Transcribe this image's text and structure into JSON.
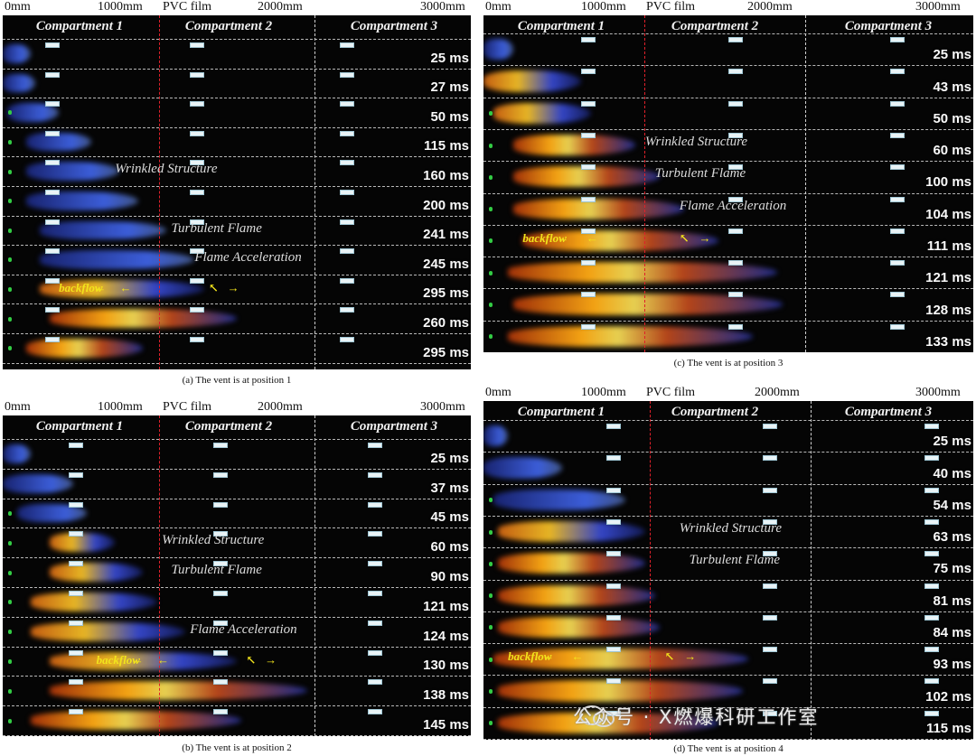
{
  "panels": [
    {
      "id": "a",
      "scale": [
        "0mm",
        "1000mm",
        "PVC film",
        "2000mm",
        "3000mm"
      ],
      "compartments": [
        "Compartment 1",
        "Compartment 2",
        "Compartment 3"
      ],
      "times": [
        "25 ms",
        "27 ms",
        "50 ms",
        "115 ms",
        "160 ms",
        "200 ms",
        "241 ms",
        "245 ms",
        "295 ms",
        "260 ms",
        "295 ms"
      ],
      "annotations": [
        "Wrinkled Structure",
        "Turbulent Flame",
        "Flame Acceleration"
      ],
      "backflow": "backflow",
      "caption": "(a) The vent is at position 1"
    },
    {
      "id": "b",
      "scale": [
        "0mm",
        "1000mm",
        "PVC film",
        "2000mm",
        "3000mm"
      ],
      "compartments": [
        "Compartment 1",
        "Compartment 2",
        "Compartment 3"
      ],
      "times": [
        "25 ms",
        "37 ms",
        "45 ms",
        "60 ms",
        "90 ms",
        "121 ms",
        "124 ms",
        "130 ms",
        "138 ms",
        "145 ms"
      ],
      "annotations": [
        "Wrinkled Structure",
        "Turbulent Flame",
        "Flame Acceleration"
      ],
      "backflow": "backflow",
      "caption": "(b) The vent is at position 2"
    },
    {
      "id": "c",
      "scale": [
        "0mm",
        "1000mm",
        "PVC film",
        "2000mm",
        "3000mm"
      ],
      "compartments": [
        "Compartment 1",
        "Compartment 2",
        "Compartment 3"
      ],
      "times": [
        "25 ms",
        "43 ms",
        "50 ms",
        "60 ms",
        "100 ms",
        "104 ms",
        "111 ms",
        "121 ms",
        "128 ms",
        "133 ms"
      ],
      "annotations": [
        "Wrinkled Structure",
        "Turbulent Flame",
        "Flame Acceleration"
      ],
      "backflow": "backflow",
      "caption": "(c) The vent is at position 3"
    },
    {
      "id": "d",
      "scale": [
        "0mm",
        "1000mm",
        "PVC film",
        "2000mm",
        "3000mm"
      ],
      "compartments": [
        "Compartment 1",
        "Compartment 2",
        "Compartment 3"
      ],
      "times": [
        "25 ms",
        "40 ms",
        "54 ms",
        "63 ms",
        "75 ms",
        "81 ms",
        "84 ms",
        "93 ms",
        "102 ms",
        "115 ms"
      ],
      "annotations": [
        "Wrinkled Structure",
        "Turbulent Flame"
      ],
      "backflow": "backflow",
      "caption": "(d) The vent is at position 4"
    }
  ],
  "watermark": "公众号 · X燃爆科研工作室",
  "colors": {
    "divider_red": "#e0202a",
    "backflow": "#f2e41c",
    "frame": "#050505"
  }
}
